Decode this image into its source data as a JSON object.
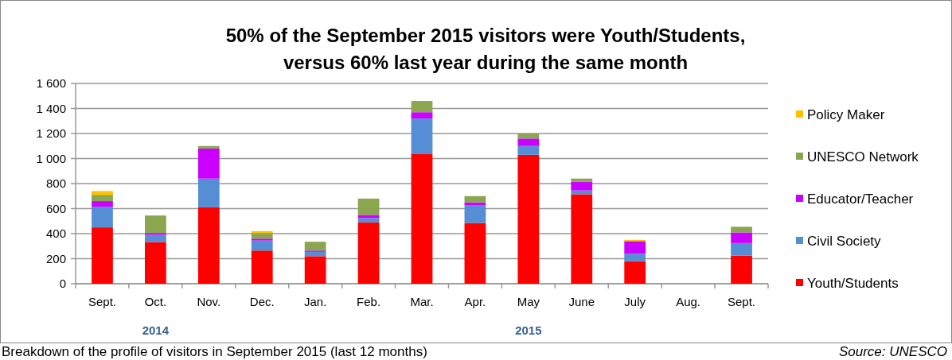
{
  "chart_data": {
    "type": "bar",
    "stacked": true,
    "title": "50% of the September 2015 visitors were Youth/Students,\nversus 60% last year during the same month",
    "categories": [
      "Sept.",
      "Oct.",
      "Nov.",
      "Dec.",
      "Jan.",
      "Feb.",
      "Mar.",
      "Apr.",
      "May",
      "June",
      "July",
      "Aug.",
      "Sept."
    ],
    "series": [
      {
        "name": "Youth/Students",
        "color": "#ff0000",
        "values": [
          450,
          333,
          610,
          265,
          220,
          490,
          1035,
          485,
          1030,
          715,
          180,
          0,
          225
        ]
      },
      {
        "name": "Civil Society",
        "color": "#558ed5",
        "values": [
          165,
          57,
          230,
          80,
          35,
          35,
          285,
          140,
          70,
          30,
          60,
          0,
          100
        ]
      },
      {
        "name": "Educator/Teacher",
        "color": "#cc00ff",
        "values": [
          45,
          15,
          240,
          15,
          10,
          25,
          50,
          25,
          60,
          70,
          100,
          0,
          85
        ]
      },
      {
        "name": "UNESCO Network",
        "color": "#8aa64e",
        "values": [
          50,
          140,
          20,
          45,
          70,
          130,
          90,
          50,
          40,
          25,
          0,
          0,
          45
        ]
      },
      {
        "name": "Policy Maker",
        "color": "#ffc000",
        "values": [
          30,
          0,
          0,
          15,
          0,
          0,
          0,
          0,
          0,
          0,
          10,
          0,
          0
        ]
      }
    ],
    "ylim": [
      0,
      1600
    ],
    "yticks": [
      {
        "value": 0,
        "label": "0"
      },
      {
        "value": 200,
        "label": "200"
      },
      {
        "value": 400,
        "label": "400"
      },
      {
        "value": 600,
        "label": "600"
      },
      {
        "value": 800,
        "label": "800"
      },
      {
        "value": 1000,
        "label": "1 000"
      },
      {
        "value": 1200,
        "label": "1 200"
      },
      {
        "value": 1400,
        "label": "1 400"
      },
      {
        "value": 1600,
        "label": "1 600"
      }
    ],
    "grid": "y",
    "legend": "right",
    "annotations": [
      "2014",
      "2015",
      "Breakdown of the profile of visitors in September 2015 (last 12 months)",
      "Source: UNESCO"
    ]
  }
}
